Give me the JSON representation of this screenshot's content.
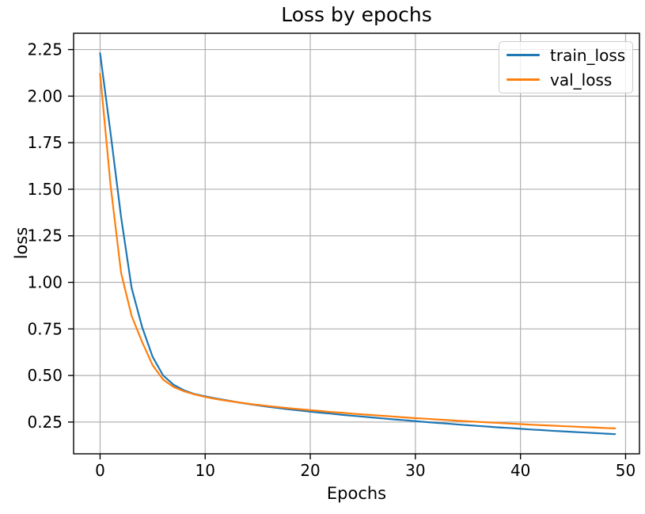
{
  "figure": {
    "title": "Loss by epochs",
    "xlabel": "Epochs",
    "ylabel": "loss"
  },
  "legend": {
    "entries": [
      {
        "label": "train_loss",
        "color": "#1f77b4"
      },
      {
        "label": "val_loss",
        "color": "#ff7f0e"
      }
    ]
  },
  "chart_data": {
    "type": "line",
    "title": "Loss by epochs",
    "xlabel": "Epochs",
    "ylabel": "loss",
    "grid": true,
    "legend_position": "upper right",
    "background_color": "#ffffff",
    "grid_color": "#b0b0b0",
    "spine_color": "#000000",
    "tick_label_color": "#000000",
    "xlim": [
      -2.52,
      51.32
    ],
    "ylim": [
      0.0795,
      2.3375
    ],
    "x_ticks": [
      0,
      10,
      20,
      30,
      40,
      50
    ],
    "x_tick_labels": [
      "0",
      "10",
      "20",
      "30",
      "40",
      "50"
    ],
    "y_ticks": [
      0.25,
      0.5,
      0.75,
      1.0,
      1.25,
      1.5,
      1.75,
      2.0,
      2.25
    ],
    "y_tick_labels": [
      "0.25",
      "0.50",
      "0.75",
      "1.00",
      "1.25",
      "1.50",
      "1.75",
      "2.00",
      "2.25"
    ],
    "x": [
      0,
      1,
      2,
      3,
      4,
      5,
      6,
      7,
      8,
      9,
      10,
      11,
      12,
      13,
      14,
      15,
      16,
      17,
      18,
      19,
      20,
      21,
      22,
      23,
      24,
      25,
      26,
      27,
      28,
      29,
      30,
      31,
      32,
      33,
      34,
      35,
      36,
      37,
      38,
      39,
      40,
      41,
      42,
      43,
      44,
      45,
      46,
      47,
      48,
      49
    ],
    "series": [
      {
        "name": "train_loss",
        "color": "#1f77b4",
        "values": [
          2.23,
          1.8,
          1.35,
          0.97,
          0.76,
          0.6,
          0.5,
          0.45,
          0.42,
          0.4,
          0.388,
          0.377,
          0.367,
          0.357,
          0.348,
          0.34,
          0.332,
          0.325,
          0.318,
          0.312,
          0.306,
          0.3,
          0.295,
          0.289,
          0.284,
          0.279,
          0.274,
          0.269,
          0.264,
          0.26,
          0.255,
          0.25,
          0.246,
          0.242,
          0.237,
          0.233,
          0.229,
          0.225,
          0.221,
          0.218,
          0.214,
          0.21,
          0.207,
          0.203,
          0.2,
          0.197,
          0.194,
          0.191,
          0.188,
          0.185
        ]
      },
      {
        "name": "val_loss",
        "color": "#ff7f0e",
        "values": [
          2.12,
          1.52,
          1.05,
          0.82,
          0.68,
          0.555,
          0.478,
          0.438,
          0.415,
          0.398,
          0.385,
          0.374,
          0.365,
          0.357,
          0.349,
          0.342,
          0.336,
          0.33,
          0.324,
          0.319,
          0.314,
          0.309,
          0.304,
          0.3,
          0.295,
          0.291,
          0.287,
          0.283,
          0.279,
          0.275,
          0.271,
          0.268,
          0.264,
          0.261,
          0.257,
          0.254,
          0.251,
          0.248,
          0.245,
          0.242,
          0.239,
          0.236,
          0.233,
          0.231,
          0.228,
          0.226,
          0.223,
          0.221,
          0.218,
          0.216
        ]
      }
    ]
  }
}
